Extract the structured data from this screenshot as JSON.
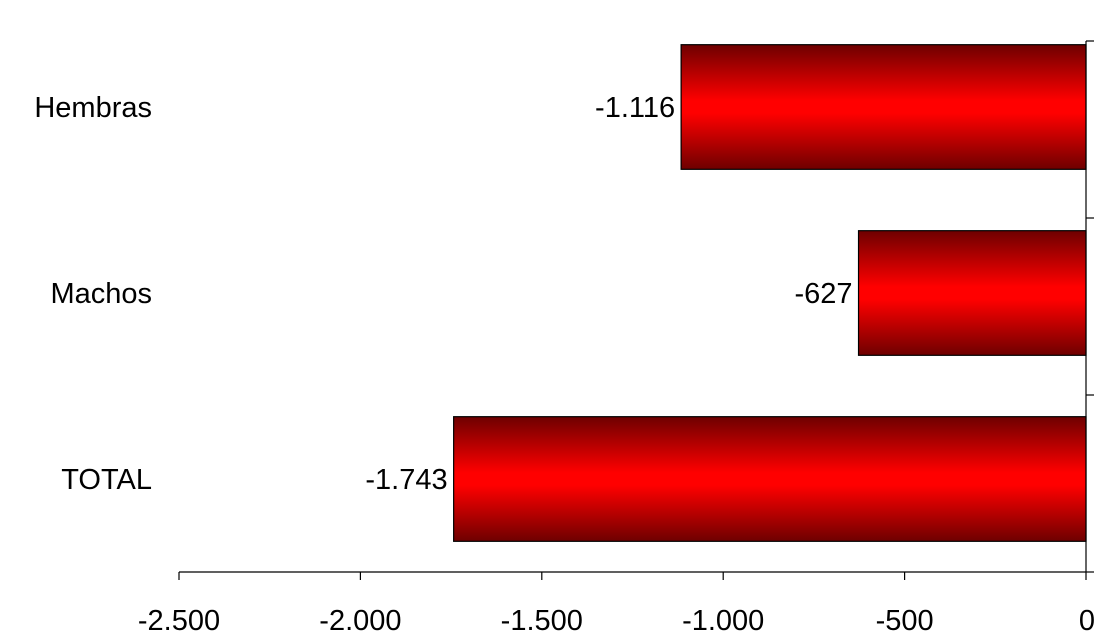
{
  "chart_data": {
    "type": "bar",
    "orientation": "horizontal",
    "categories": [
      "Hembras",
      "Machos",
      "TOTAL"
    ],
    "values": [
      -1116,
      -627,
      -1743
    ],
    "value_labels": [
      "-1.116",
      "-627",
      "-1.743"
    ],
    "xlim": [
      -2500,
      0
    ],
    "xticks": [
      -2500,
      -2000,
      -1500,
      -1000,
      -500,
      0
    ],
    "xtick_labels": [
      "-2.500",
      "-2.000",
      "-1.500",
      "-1.000",
      "-500",
      "0"
    ],
    "title": "",
    "xlabel": "",
    "ylabel": "",
    "grid": false,
    "legend": "none",
    "colors": {
      "bar_edge": "#4d0000",
      "bar_dark": "#6e0000",
      "bar_bright": "#ff0000",
      "axis": "#000000"
    }
  }
}
